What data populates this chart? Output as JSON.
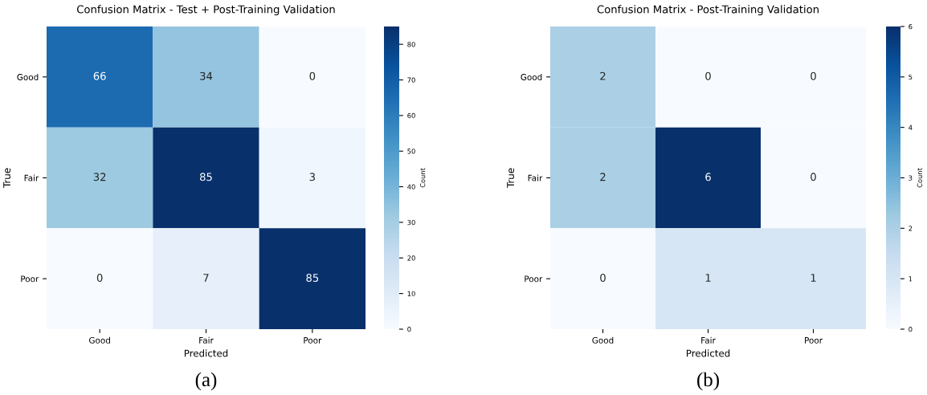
{
  "chart_data": [
    {
      "type": "heatmap",
      "title": "Confusion Matrix - Test + Post-Training Validation",
      "xlabel": "Predicted",
      "ylabel": "True",
      "clabel": "Count",
      "categories": [
        "Good",
        "Fair",
        "Poor"
      ],
      "y_categories": [
        "Good",
        "Fair",
        "Poor"
      ],
      "cells": [
        [
          66,
          34,
          0
        ],
        [
          32,
          85,
          3
        ],
        [
          0,
          7,
          85
        ]
      ],
      "clim": [
        0,
        85
      ],
      "cticks": [
        0,
        10,
        20,
        30,
        40,
        50,
        60,
        70,
        80
      ],
      "data_labels": true,
      "annotations": [
        "(a)"
      ]
    },
    {
      "type": "heatmap",
      "title": "Confusion Matrix - Post-Training Validation",
      "xlabel": "Predicted",
      "ylabel": "True",
      "clabel": "Count",
      "categories": [
        "Good",
        "Fair",
        "Poor"
      ],
      "y_categories": [
        "Good",
        "Fair",
        "Poor"
      ],
      "cells": [
        [
          2,
          0,
          0
        ],
        [
          2,
          6,
          0
        ],
        [
          0,
          1,
          1
        ]
      ],
      "clim": [
        0,
        6
      ],
      "cticks": [
        0,
        1,
        2,
        3,
        4,
        5,
        6
      ],
      "data_labels": true,
      "annotations": [
        "(b)"
      ]
    }
  ]
}
